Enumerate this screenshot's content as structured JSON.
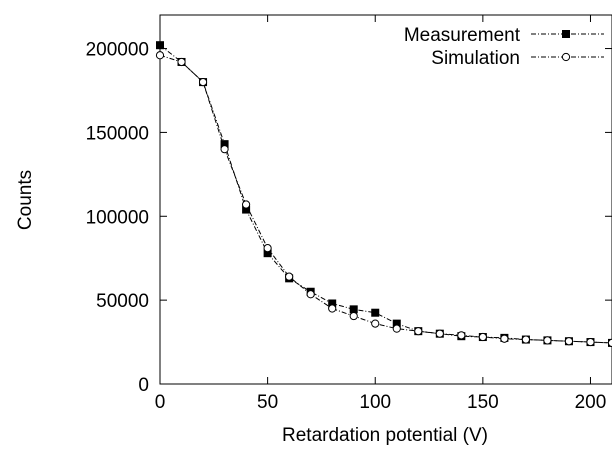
{
  "chart_data": {
    "type": "line",
    "title": "",
    "xlabel": "Retardation potential (V)",
    "ylabel": "Counts",
    "xlim": [
      0,
      210
    ],
    "ylim": [
      0,
      220000
    ],
    "x_ticks": [
      0,
      50,
      100,
      150,
      200
    ],
    "y_ticks": [
      0,
      50000,
      100000,
      150000,
      200000
    ],
    "x_tick_labels": [
      "0",
      "50",
      "100",
      "150",
      "200"
    ],
    "y_tick_labels": [
      "0",
      "50000",
      "100000",
      "150000",
      "200000"
    ],
    "grid": false,
    "legend_position": "top-right",
    "series": [
      {
        "name": "Measurement",
        "marker": "filled-square",
        "line_style": "dash-dot",
        "color": "#000000",
        "x": [
          0,
          10,
          20,
          30,
          40,
          50,
          60,
          70,
          80,
          90,
          100,
          110,
          120,
          130,
          140,
          150,
          160,
          170,
          180,
          190,
          200,
          210
        ],
        "y": [
          202000,
          192000,
          180000,
          143000,
          104000,
          78000,
          63000,
          55000,
          48000,
          44500,
          42500,
          36000,
          31500,
          30000,
          28500,
          28000,
          27500,
          26500,
          26000,
          25500,
          25000,
          24500
        ]
      },
      {
        "name": "Simulation",
        "marker": "open-circle",
        "line_style": "dash-dot",
        "color": "#000000",
        "x": [
          0,
          10,
          20,
          30,
          40,
          50,
          60,
          70,
          80,
          90,
          100,
          110,
          120,
          130,
          140,
          150,
          160,
          170,
          180,
          190,
          200,
          210
        ],
        "y": [
          196000,
          192000,
          180000,
          140000,
          107000,
          81000,
          64000,
          53500,
          45000,
          40500,
          36000,
          33000,
          31500,
          30000,
          29000,
          28000,
          27000,
          26500,
          26000,
          25500,
          25000,
          24500
        ]
      }
    ]
  }
}
